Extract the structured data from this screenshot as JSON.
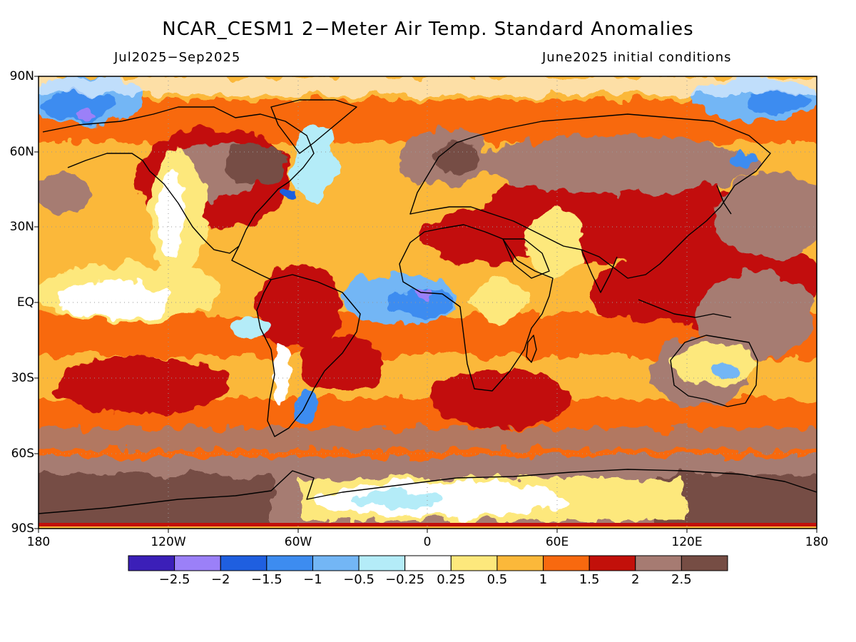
{
  "title": "NCAR_CESM1 2−Meter Air Temp. Standard Anomalies",
  "period": "Jul2025−Sep2025",
  "init": "June2025 initial conditions",
  "map": {
    "lat_ticks": [
      "90N",
      "60N",
      "30N",
      "EQ",
      "30S",
      "60S",
      "90S"
    ],
    "lon_ticks": [
      "180",
      "120W",
      "60W",
      "0",
      "60E",
      "120E",
      "180"
    ]
  },
  "colorbar": {
    "colors": [
      "#3b1fb8",
      "#9b80f8",
      "#1f5fe0",
      "#3d8cf0",
      "#73b6f5",
      "#b4ecf8",
      "#ffffff",
      "#fde87c",
      "#fbb83a",
      "#f8690f",
      "#c2100a",
      "#a67b72",
      "#764d44"
    ],
    "labels": [
      "−2.5",
      "−2",
      "−1.5",
      "−1",
      "−0.5",
      "−0.25",
      "0.25",
      "0.5",
      "1",
      "1.5",
      "2",
      "2.5"
    ]
  },
  "legend_colors": {
    "neg_strong": "#3b1fb8",
    "neutral": "#ffffff",
    "pos_strong": "#764d44"
  }
}
